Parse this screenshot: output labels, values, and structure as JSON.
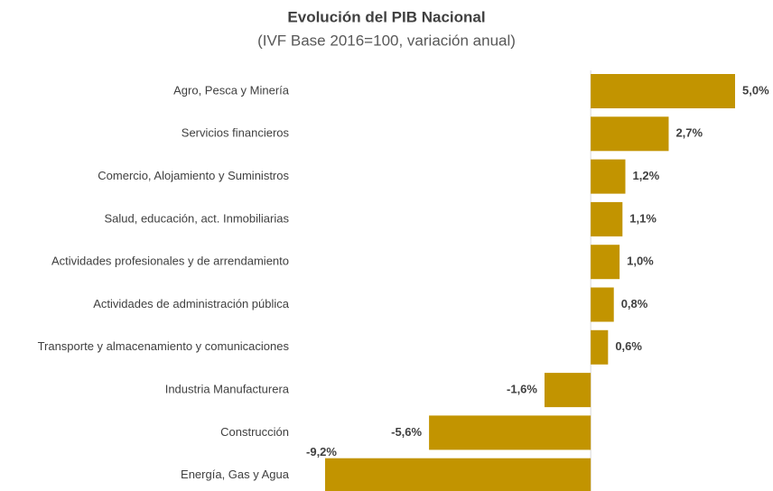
{
  "chart_data": {
    "type": "hbar",
    "title": "Evolución del PIB Nacional",
    "subtitle": "(IVF Base 2016=100, variación anual)",
    "categories": [
      "Agro, Pesca y Minería",
      "Servicios financieros",
      "Comercio, Alojamiento y Suministros",
      "Salud, educación, act. Inmobiliarias",
      "Actividades profesionales y de arrendamiento",
      "Actividades de administración pública",
      "Transporte y almacenamiento y comunicaciones",
      "Industria Manufacturera",
      "Construcción",
      "Energía, Gas y Agua"
    ],
    "values": [
      5.0,
      2.7,
      1.2,
      1.1,
      1.0,
      0.8,
      0.6,
      -1.6,
      -5.6,
      -9.2
    ],
    "value_labels": [
      "5,0%",
      "2,7%",
      "1,2%",
      "1,1%",
      "1,0%",
      "0,8%",
      "0,6%",
      "-1,6%",
      "-5,6%",
      "-9,2%"
    ],
    "color": "#c29400"
  }
}
